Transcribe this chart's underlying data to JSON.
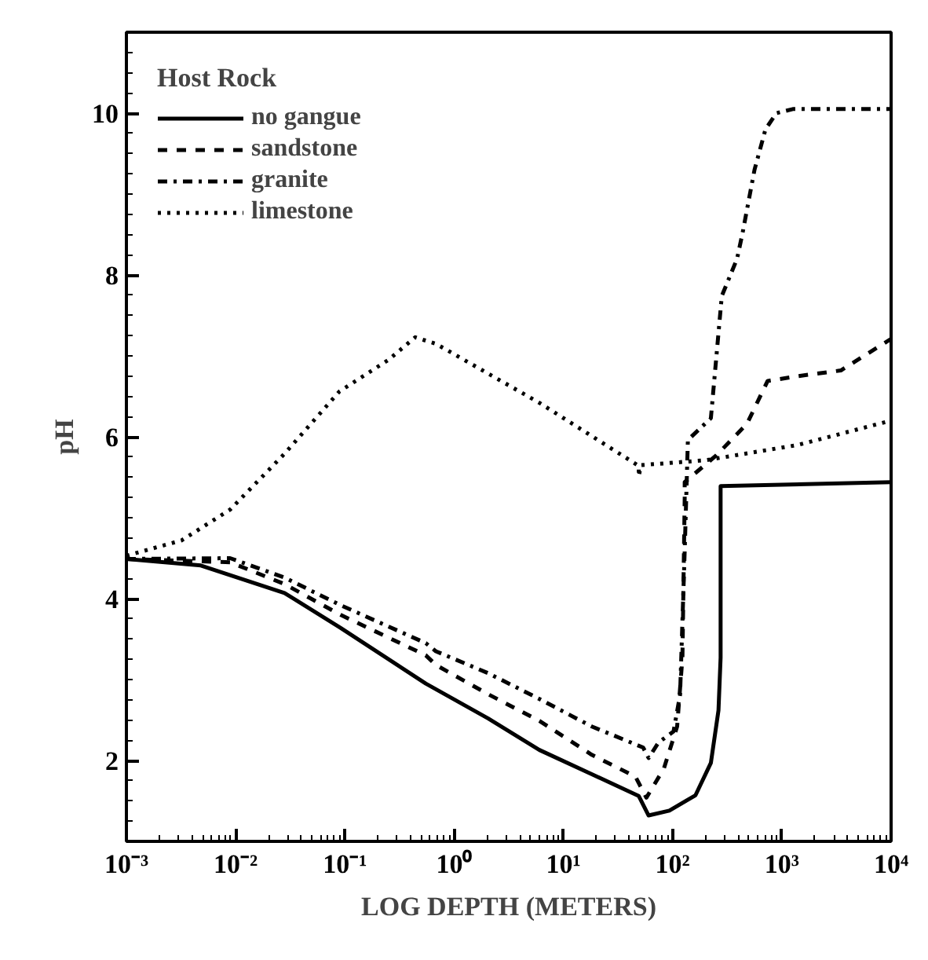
{
  "chart_data": {
    "type": "line",
    "xlabel": "LOG DEPTH (METERS)",
    "ylabel": "pH",
    "legend_title": "Host Rock",
    "log": "x",
    "grid": false,
    "legend": "top left",
    "marker": "none",
    "xlim": [
      0.001,
      10000
    ],
    "ylim": [
      1,
      11
    ],
    "xticks": [
      {
        "value": 0.001,
        "label": "10⁻³"
      },
      {
        "value": 0.01,
        "label": "10⁻²"
      },
      {
        "value": 0.1,
        "label": "10⁻¹"
      },
      {
        "value": 1,
        "label": "10⁰"
      },
      {
        "value": 10,
        "label": "10¹"
      },
      {
        "value": 100,
        "label": "10²"
      },
      {
        "value": 1000,
        "label": "10³"
      },
      {
        "value": 10000,
        "label": "10⁴"
      }
    ],
    "yticks": [
      2,
      4,
      6,
      8,
      10
    ],
    "series": [
      {
        "name": "no gangue",
        "color": "#000000",
        "line_style": "solid",
        "x": [
          0.001,
          0.0048,
          0.028,
          0.091,
          0.55,
          2.04,
          6.03,
          18.2,
          49.0,
          60.3,
          93.3,
          162,
          224,
          263,
          275,
          275,
          10000
        ],
        "values": [
          4.49,
          4.41,
          4.07,
          3.64,
          2.95,
          2.52,
          2.13,
          1.83,
          1.56,
          1.32,
          1.38,
          1.57,
          1.97,
          2.62,
          3.27,
          5.39,
          5.44
        ]
      },
      {
        "name": "sandstone",
        "color": "#000000",
        "line_style": "dashed",
        "x": [
          0.001,
          0.0089,
          0.028,
          0.091,
          0.55,
          0.68,
          2.04,
          6.03,
          18.2,
          45.7,
          57.5,
          83.2,
          110,
          123,
          129,
          129,
          251,
          479,
          741,
          1413,
          3467,
          10000
        ],
        "values": [
          4.49,
          4.45,
          4.18,
          3.8,
          3.3,
          3.18,
          2.82,
          2.49,
          2.07,
          1.8,
          1.54,
          1.9,
          2.42,
          3.27,
          5.24,
          5.44,
          5.77,
          6.16,
          6.69,
          6.75,
          6.82,
          7.21
        ]
      },
      {
        "name": "granite",
        "color": "#000000",
        "line_style": "dashdot",
        "x": [
          0.001,
          0.0089,
          0.028,
          0.091,
          0.55,
          0.68,
          2.04,
          6.03,
          18.2,
          53.7,
          60.3,
          74.1,
          102,
          117,
          129,
          138,
          224,
          282,
          389,
          437,
          562,
          708,
          891,
          1259,
          10000
        ],
        "values": [
          4.49,
          4.5,
          4.26,
          3.92,
          3.45,
          3.35,
          3.08,
          2.76,
          2.42,
          2.16,
          2.03,
          2.22,
          2.36,
          2.81,
          4.59,
          5.96,
          6.23,
          7.74,
          8.2,
          8.52,
          9.3,
          9.8,
          10.0,
          10.05,
          10.05
        ]
      },
      {
        "name": "limestone",
        "color": "#000000",
        "line_style": "dotted",
        "x": [
          0.001,
          0.0032,
          0.0089,
          0.028,
          0.089,
          0.25,
          0.44,
          0.68,
          6.03,
          49.0,
          49.0,
          51.3,
          200,
          1413,
          10000
        ],
        "values": [
          4.53,
          4.72,
          5.1,
          5.79,
          6.56,
          6.95,
          7.23,
          7.15,
          6.42,
          5.64,
          5.51,
          5.65,
          5.71,
          5.9,
          6.2
        ]
      }
    ]
  }
}
